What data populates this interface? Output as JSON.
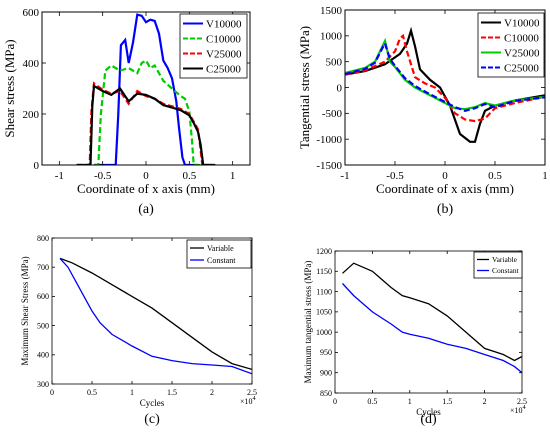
{
  "chart_data": [
    {
      "type": "line",
      "panel_label": "(a)",
      "xlabel": "Coordinate of x axis (mm)",
      "ylabel": "Shear stress (MPa)",
      "xlim": [
        -1.2,
        1.2
      ],
      "ylim": [
        0,
        600
      ],
      "xticks": [
        "-1",
        "-0.5",
        "0",
        "0.5",
        "1"
      ],
      "xtick_values": [
        -1,
        -0.5,
        0,
        0.5,
        1
      ],
      "yticks": [
        "0",
        "200",
        "400",
        "600"
      ],
      "ytick_values": [
        0,
        200,
        400,
        600
      ],
      "legend_position": "top-right",
      "grid": false,
      "series": [
        {
          "name": "V10000",
          "color": "#0000ff",
          "dash": "solid",
          "x": [
            -0.6,
            -0.35,
            -0.32,
            -0.29,
            -0.24,
            -0.2,
            -0.15,
            -0.1,
            -0.05,
            0.0,
            0.05,
            0.1,
            0.15,
            0.2,
            0.25,
            0.3,
            0.35,
            0.38,
            0.42,
            0.45,
            0.6
          ],
          "y": [
            0,
            0,
            200,
            470,
            490,
            400,
            480,
            590,
            585,
            560,
            570,
            565,
            515,
            410,
            380,
            340,
            250,
            150,
            30,
            0,
            0
          ]
        },
        {
          "name": "C10000",
          "color": "#00cc00",
          "dash": "dashed",
          "x": [
            -0.7,
            -0.55,
            -0.52,
            -0.47,
            -0.4,
            -0.3,
            -0.2,
            -0.1,
            -0.05,
            0.0,
            0.05,
            0.1,
            0.2,
            0.3,
            0.4,
            0.45,
            0.5,
            0.53,
            0.55,
            0.7
          ],
          "y": [
            0,
            0,
            200,
            370,
            390,
            370,
            380,
            360,
            400,
            410,
            380,
            390,
            330,
            300,
            270,
            260,
            210,
            100,
            0,
            0
          ]
        },
        {
          "name": "V25000",
          "color": "#ff0000",
          "dash": "dashed",
          "x": [
            -0.8,
            -0.65,
            -0.63,
            -0.6,
            -0.5,
            -0.4,
            -0.3,
            -0.2,
            -0.1,
            0.0,
            0.1,
            0.2,
            0.3,
            0.4,
            0.5,
            0.55,
            0.6,
            0.62,
            0.65,
            0.8
          ],
          "y": [
            0,
            0,
            210,
            320,
            295,
            280,
            290,
            240,
            290,
            270,
            260,
            240,
            230,
            220,
            200,
            170,
            140,
            90,
            0,
            0
          ]
        },
        {
          "name": "C25000",
          "color": "#000000",
          "dash": "solid",
          "x": [
            -0.8,
            -0.64,
            -0.62,
            -0.6,
            -0.5,
            -0.4,
            -0.3,
            -0.2,
            -0.1,
            0.0,
            0.1,
            0.2,
            0.3,
            0.4,
            0.5,
            0.55,
            0.6,
            0.63,
            0.66,
            0.8
          ],
          "y": [
            0,
            0,
            230,
            310,
            290,
            275,
            300,
            250,
            280,
            275,
            260,
            235,
            225,
            215,
            195,
            165,
            130,
            80,
            0,
            0
          ]
        }
      ]
    },
    {
      "type": "line",
      "panel_label": "(b)",
      "xlabel": "Coordinate of x axis (mm)",
      "ylabel": "Tangential stress (MPa)",
      "xlim": [
        -1,
        1
      ],
      "ylim": [
        -1500,
        1500
      ],
      "xticks": [
        "-1",
        "-0.5",
        "0",
        "0.5",
        "1"
      ],
      "xtick_values": [
        -1,
        -0.5,
        0,
        0.5,
        1
      ],
      "yticks": [
        "-1500",
        "-1000",
        "-500",
        "0",
        "500",
        "1000",
        "1500"
      ],
      "ytick_values": [
        -1500,
        -1000,
        -500,
        0,
        500,
        1000,
        1500
      ],
      "legend_position": "top-right",
      "grid": false,
      "series": [
        {
          "name": "V10000",
          "color": "#000000",
          "dash": "solid",
          "x": [
            -1.0,
            -0.8,
            -0.6,
            -0.45,
            -0.38,
            -0.34,
            -0.3,
            -0.25,
            -0.15,
            -0.05,
            0.05,
            0.15,
            0.25,
            0.3,
            0.35,
            0.4,
            0.5,
            0.7,
            1.0
          ],
          "y": [
            250,
            320,
            450,
            650,
            850,
            1100,
            800,
            350,
            150,
            0,
            -350,
            -900,
            -1050,
            -1050,
            -700,
            -450,
            -350,
            -250,
            -150
          ]
        },
        {
          "name": "C10000",
          "color": "#ff0000",
          "dash": "dashed",
          "x": [
            -1.0,
            -0.8,
            -0.6,
            -0.5,
            -0.45,
            -0.42,
            -0.38,
            -0.3,
            -0.2,
            -0.1,
            0.0,
            0.1,
            0.2,
            0.3,
            0.4,
            0.5,
            0.7,
            1.0
          ],
          "y": [
            250,
            330,
            500,
            700,
            950,
            1000,
            700,
            200,
            80,
            0,
            -200,
            -500,
            -620,
            -650,
            -600,
            -400,
            -300,
            -180
          ]
        },
        {
          "name": "V25000",
          "color": "#00cc00",
          "dash": "solid",
          "x": [
            -1.0,
            -0.8,
            -0.7,
            -0.63,
            -0.6,
            -0.55,
            -0.5,
            -0.4,
            -0.3,
            -0.2,
            -0.1,
            0.0,
            0.1,
            0.2,
            0.3,
            0.4,
            0.5,
            0.7,
            1.0
          ],
          "y": [
            280,
            380,
            500,
            780,
            900,
            500,
            400,
            150,
            0,
            -100,
            -200,
            -300,
            -400,
            -420,
            -380,
            -300,
            -350,
            -250,
            -180
          ]
        },
        {
          "name": "C25000",
          "color": "#0000ff",
          "dash": "dashed",
          "x": [
            -1.0,
            -0.8,
            -0.7,
            -0.63,
            -0.6,
            -0.55,
            -0.5,
            -0.4,
            -0.3,
            -0.2,
            -0.1,
            0.0,
            0.1,
            0.2,
            0.3,
            0.4,
            0.5,
            0.7,
            1.0
          ],
          "y": [
            260,
            360,
            480,
            750,
            850,
            550,
            420,
            180,
            30,
            -80,
            -180,
            -280,
            -380,
            -450,
            -400,
            -320,
            -380,
            -260,
            -190
          ]
        }
      ]
    },
    {
      "type": "line",
      "panel_label": "(c)",
      "xlabel": "Cycles",
      "ylabel": "Maximum Shear Stress (MPa)",
      "x_multiplier": "×10^4",
      "xlim": [
        0,
        2.5
      ],
      "ylim": [
        300,
        800
      ],
      "xticks": [
        "0",
        "0.5",
        "1",
        "1.5",
        "2",
        "2.5"
      ],
      "xtick_values": [
        0,
        0.5,
        1,
        1.5,
        2,
        2.5
      ],
      "yticks": [
        "300",
        "400",
        "500",
        "600",
        "700",
        "800"
      ],
      "ytick_values": [
        300,
        400,
        500,
        600,
        700,
        800
      ],
      "legend_position": "top-right",
      "grid": false,
      "series": [
        {
          "name": "Variable",
          "color": "#000000",
          "dash": "solid",
          "x": [
            0.1,
            0.25,
            0.5,
            0.75,
            1.0,
            1.25,
            1.5,
            1.75,
            2.0,
            2.25,
            2.5
          ],
          "y": [
            730,
            715,
            680,
            640,
            600,
            560,
            510,
            460,
            410,
            370,
            350
          ]
        },
        {
          "name": "Constant",
          "color": "#0000ff",
          "dash": "solid",
          "x": [
            0.1,
            0.2,
            0.3,
            0.4,
            0.5,
            0.6,
            0.75,
            1.0,
            1.25,
            1.5,
            1.75,
            2.0,
            2.25,
            2.5
          ],
          "y": [
            730,
            700,
            650,
            600,
            550,
            510,
            470,
            430,
            395,
            380,
            370,
            365,
            360,
            335
          ]
        }
      ]
    },
    {
      "type": "line",
      "panel_label": "(d)",
      "xlabel": "Cycles",
      "ylabel": "Maximum tangential stress (MPa)",
      "x_multiplier": "×10^4",
      "xlim": [
        0,
        2.5
      ],
      "ylim": [
        850,
        1200
      ],
      "xticks": [
        "0",
        "0.5",
        "1",
        "1.5",
        "2",
        "2.5"
      ],
      "xtick_values": [
        0,
        0.5,
        1,
        1.5,
        2,
        2.5
      ],
      "yticks": [
        "850",
        "900",
        "950",
        "1000",
        "1050",
        "1100",
        "1150",
        "1200"
      ],
      "ytick_values": [
        850,
        900,
        950,
        1000,
        1050,
        1100,
        1150,
        1200
      ],
      "legend_position": "top-right",
      "grid": false,
      "series": [
        {
          "name": "Variable",
          "color": "#000000",
          "dash": "solid",
          "x": [
            0.1,
            0.25,
            0.5,
            0.75,
            0.9,
            1.0,
            1.25,
            1.5,
            1.75,
            2.0,
            2.25,
            2.4,
            2.5
          ],
          "y": [
            1145,
            1170,
            1150,
            1110,
            1090,
            1085,
            1070,
            1040,
            1000,
            960,
            945,
            930,
            940
          ]
        },
        {
          "name": "Constant",
          "color": "#0000ff",
          "dash": "solid",
          "x": [
            0.1,
            0.25,
            0.5,
            0.75,
            0.9,
            1.0,
            1.25,
            1.5,
            1.75,
            2.0,
            2.25,
            2.4,
            2.5
          ],
          "y": [
            1120,
            1090,
            1050,
            1020,
            1000,
            995,
            985,
            970,
            960,
            945,
            930,
            915,
            900
          ]
        }
      ]
    }
  ]
}
